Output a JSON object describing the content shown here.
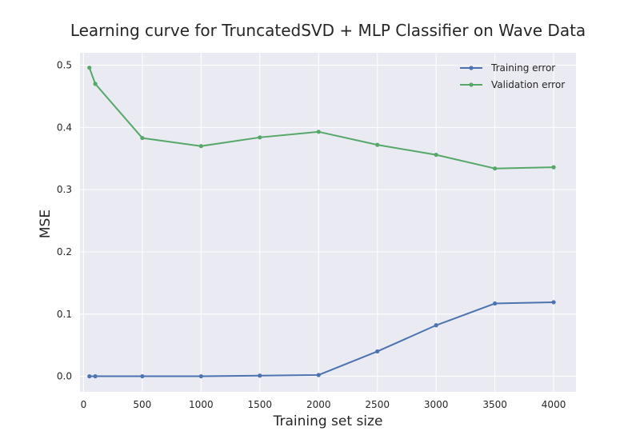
{
  "chart_data": {
    "type": "line",
    "title": "Learning curve for TruncatedSVD + MLP Classifier on Wave Data",
    "xlabel": "Training set size",
    "ylabel": "MSE",
    "xlim": [
      -30,
      4190
    ],
    "ylim": [
      -0.025,
      0.52
    ],
    "xticks": [
      0,
      500,
      1000,
      1500,
      2000,
      2500,
      3000,
      3500,
      4000
    ],
    "yticks": [
      0.0,
      0.1,
      0.2,
      0.3,
      0.4,
      0.5
    ],
    "xtick_labels": [
      "0",
      "500",
      "1000",
      "1500",
      "2000",
      "2500",
      "3000",
      "3500",
      "4000"
    ],
    "ytick_labels": [
      "0.0",
      "0.1",
      "0.2",
      "0.3",
      "0.4",
      "0.5"
    ],
    "grid": true,
    "legend_position": "top-right",
    "x": [
      50,
      100,
      500,
      1000,
      1500,
      2000,
      2500,
      3000,
      3500,
      4000
    ],
    "series": [
      {
        "name": "Training error",
        "color": "#4c72b0",
        "values": [
          0.0,
          0.0,
          0.0,
          0.0,
          0.001,
          0.002,
          0.04,
          0.082,
          0.117,
          0.119
        ]
      },
      {
        "name": "Validation error",
        "color": "#55a868",
        "values": [
          0.496,
          0.47,
          0.383,
          0.37,
          0.384,
          0.393,
          0.372,
          0.356,
          0.334,
          0.336
        ]
      }
    ],
    "colors": {
      "plot_background": "#eaeaf2",
      "grid": "#ffffff",
      "text": "#262626"
    }
  }
}
